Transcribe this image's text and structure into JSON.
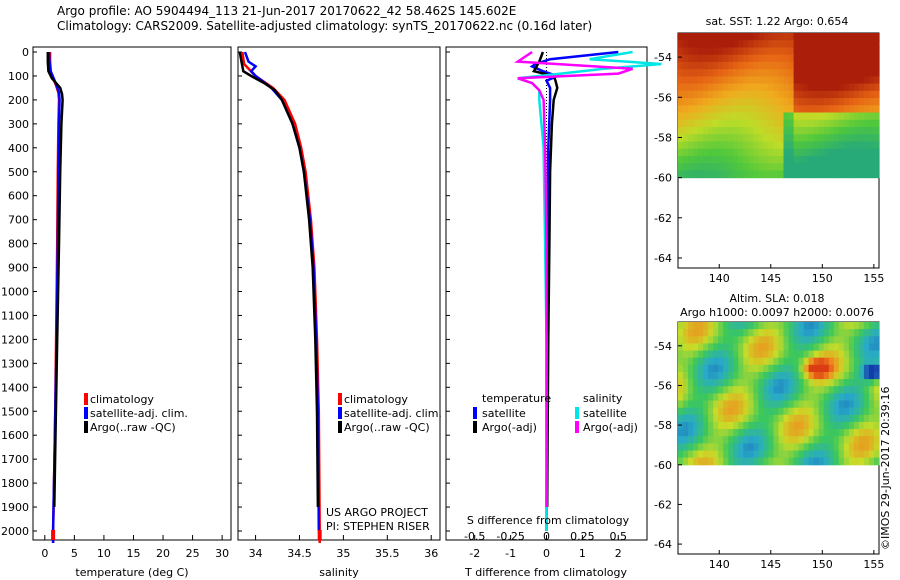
{
  "header": {
    "line1": "Argo profile: AO 5904494_113 21-Jun-2017 20170622_42 58.462S 145.602E",
    "line2": "Climatology: CARS2009. Satellite-adjusted climatology: synTS_20170622.nc (0.16d later)"
  },
  "colors": {
    "climatology": "#ff0000",
    "satellite": "#0000ff",
    "argo": "#000000",
    "sat_salinity": "#00e5e5",
    "argo_salinity": "#ff00ff"
  },
  "chart_data": [
    {
      "id": "temperature",
      "type": "line",
      "xlabel": "temperature (deg C)",
      "ylabel": "",
      "xlim": [
        -2,
        31.5
      ],
      "ylim": [
        2070,
        0
      ],
      "xticks": [
        0,
        5,
        10,
        15,
        20,
        25,
        30
      ],
      "yticks": [
        0,
        100,
        200,
        300,
        400,
        500,
        600,
        700,
        800,
        900,
        1000,
        1100,
        1200,
        1300,
        1400,
        1500,
        1600,
        1700,
        1800,
        1900,
        2000
      ],
      "legend": [
        "climatology",
        "satellite-adj. clim.",
        "Argo(..raw -QC)"
      ],
      "series": [
        {
          "name": "climatology",
          "depth": [
            0,
            40,
            80,
            110,
            140,
            170,
            200,
            300,
            500,
            800,
            1200,
            1600,
            2000,
            2050
          ],
          "values": [
            0.9,
            0.9,
            1.0,
            1.4,
            1.9,
            2.3,
            2.4,
            2.3,
            2.2,
            2.1,
            1.9,
            1.7,
            1.4,
            1.4
          ]
        },
        {
          "name": "satellite-adj. clim.",
          "depth": [
            0,
            40,
            80,
            110,
            140,
            170,
            200,
            300,
            500,
            800,
            1200,
            1600,
            2000,
            2050
          ],
          "values": [
            0.7,
            0.8,
            1.0,
            1.5,
            2.0,
            2.4,
            2.5,
            2.4,
            2.3,
            2.2,
            2.0,
            1.7,
            1.4,
            1.4
          ]
        },
        {
          "name": "Argo(..raw -QC)",
          "depth": [
            0,
            40,
            80,
            110,
            130,
            150,
            175,
            200,
            250,
            300,
            500,
            800,
            1200,
            1600,
            1900
          ],
          "values": [
            0.5,
            0.5,
            0.6,
            1.2,
            1.9,
            2.6,
            2.9,
            3.0,
            2.9,
            2.8,
            2.6,
            2.4,
            2.1,
            1.8,
            1.6
          ]
        }
      ]
    },
    {
      "id": "salinity",
      "type": "line",
      "xlabel": "salinity",
      "ylabel": "",
      "xlim": [
        33.8,
        36.1
      ],
      "ylim": [
        2070,
        0
      ],
      "xticks": [
        34,
        34.5,
        35,
        35.5,
        36
      ],
      "legend": [
        "climatology",
        "satellite-adj. clim.",
        "Argo(..raw -QC)"
      ],
      "annotation": [
        "US ARGO PROJECT",
        "PI: STEPHEN RISER"
      ],
      "series": [
        {
          "name": "climatology",
          "depth": [
            0,
            50,
            100,
            150,
            200,
            300,
            400,
            500,
            700,
            900,
            1200,
            1500,
            2000,
            2050
          ],
          "values": [
            33.85,
            33.87,
            34.0,
            34.2,
            34.33,
            34.45,
            34.52,
            34.57,
            34.63,
            34.67,
            34.7,
            34.72,
            34.73,
            34.73
          ]
        },
        {
          "name": "satellite-adj. clim.",
          "depth": [
            0,
            40,
            60,
            80,
            100,
            150,
            200,
            300,
            400,
            500,
            700,
            900,
            1200,
            1500,
            2000
          ],
          "values": [
            33.88,
            33.92,
            34.0,
            33.95,
            34.0,
            34.18,
            34.3,
            34.42,
            34.5,
            34.55,
            34.62,
            34.66,
            34.69,
            34.71,
            34.72
          ]
        },
        {
          "name": "Argo(..raw -QC)",
          "depth": [
            0,
            40,
            80,
            100,
            130,
            160,
            200,
            300,
            400,
            500,
            700,
            900,
            1200,
            1500,
            1900
          ],
          "values": [
            33.82,
            33.84,
            33.86,
            33.95,
            34.1,
            34.22,
            34.3,
            34.42,
            34.5,
            34.55,
            34.61,
            34.65,
            34.68,
            34.7,
            34.71
          ]
        }
      ]
    },
    {
      "id": "difference",
      "type": "line",
      "xlabel": "T difference from climatology",
      "title_inner": "S difference from climatology",
      "ylim": [
        2070,
        0
      ],
      "xlim": [
        -2.8,
        2.8
      ],
      "xticks": [
        -2,
        -1,
        0,
        1,
        2
      ],
      "xticks_top": [
        "-0.5",
        "-0.25",
        "0",
        "0.25",
        "0.5"
      ],
      "legend_temperature": {
        "title": "temperature",
        "items": [
          "satellite",
          "Argo(-adj)"
        ]
      },
      "legend_salinity": {
        "title": "salinity",
        "items": [
          "satellite",
          "Argo(-adj)"
        ]
      },
      "series": [
        {
          "name": "temperature satellite",
          "depth": [
            0,
            30,
            50,
            60,
            80,
            100,
            120,
            150,
            200,
            400,
            800,
            1200,
            1600,
            2000
          ],
          "values": [
            2.0,
            0.1,
            -0.3,
            -0.4,
            -0.1,
            0.3,
            0.0,
            0.1,
            0.1,
            0.05,
            0.03,
            0.02,
            0.01,
            0.0
          ]
        },
        {
          "name": "temperature Argo(-adj)",
          "depth": [
            0,
            40,
            80,
            100,
            120,
            150,
            200,
            300,
            500,
            800,
            1200,
            1600,
            1900
          ],
          "values": [
            -0.1,
            -0.2,
            -0.35,
            0.2,
            0.25,
            0.3,
            0.2,
            0.15,
            0.1,
            0.08,
            0.05,
            0.03,
            0.02
          ]
        },
        {
          "name": "salinity satellite",
          "depth": [
            0,
            30,
            50,
            70,
            90,
            110,
            130,
            160,
            200,
            400,
            800,
            1200,
            1600,
            2000
          ],
          "values": [
            0.6,
            0.3,
            0.8,
            0.4,
            0.1,
            -0.2,
            -0.1,
            -0.05,
            -0.05,
            -0.02,
            -0.01,
            0.0,
            0.0,
            0.0
          ]
        },
        {
          "name": "salinity Argo(-adj)",
          "depth": [
            0,
            40,
            70,
            90,
            110,
            130,
            160,
            200,
            400,
            800,
            1200,
            1600,
            1900
          ],
          "values": [
            -0.1,
            -0.2,
            0.6,
            0.5,
            -0.2,
            -0.1,
            -0.05,
            -0.02,
            -0.01,
            0.0,
            0.0,
            0.0,
            0.0
          ]
        }
      ]
    },
    {
      "id": "sst_map",
      "type": "heatmap",
      "title": "sat. SST: 1.22 Argo: 0.654",
      "xlim": [
        136,
        155.5
      ],
      "ylim": [
        -64.5,
        -52.8
      ],
      "xticks": [
        140,
        145,
        150,
        155
      ],
      "yticks": [
        -54,
        -56,
        -58,
        -60,
        -62,
        -64
      ],
      "data_lat_min": -60
    },
    {
      "id": "sla_map",
      "type": "heatmap",
      "title_lines": [
        "Altim. SLA: 0.018",
        "Argo h1000: 0.0097 h2000: 0.0076"
      ],
      "xlim": [
        136,
        155.5
      ],
      "ylim": [
        -64.5,
        -52.8
      ],
      "xticks": [
        140,
        145,
        150,
        155
      ],
      "yticks": [
        -54,
        -56,
        -58,
        -60,
        -62,
        -64
      ],
      "data_lat_min": -60
    }
  ],
  "footer": {
    "credit": "©IMOS 29-Jun-2017 20:39:16"
  }
}
